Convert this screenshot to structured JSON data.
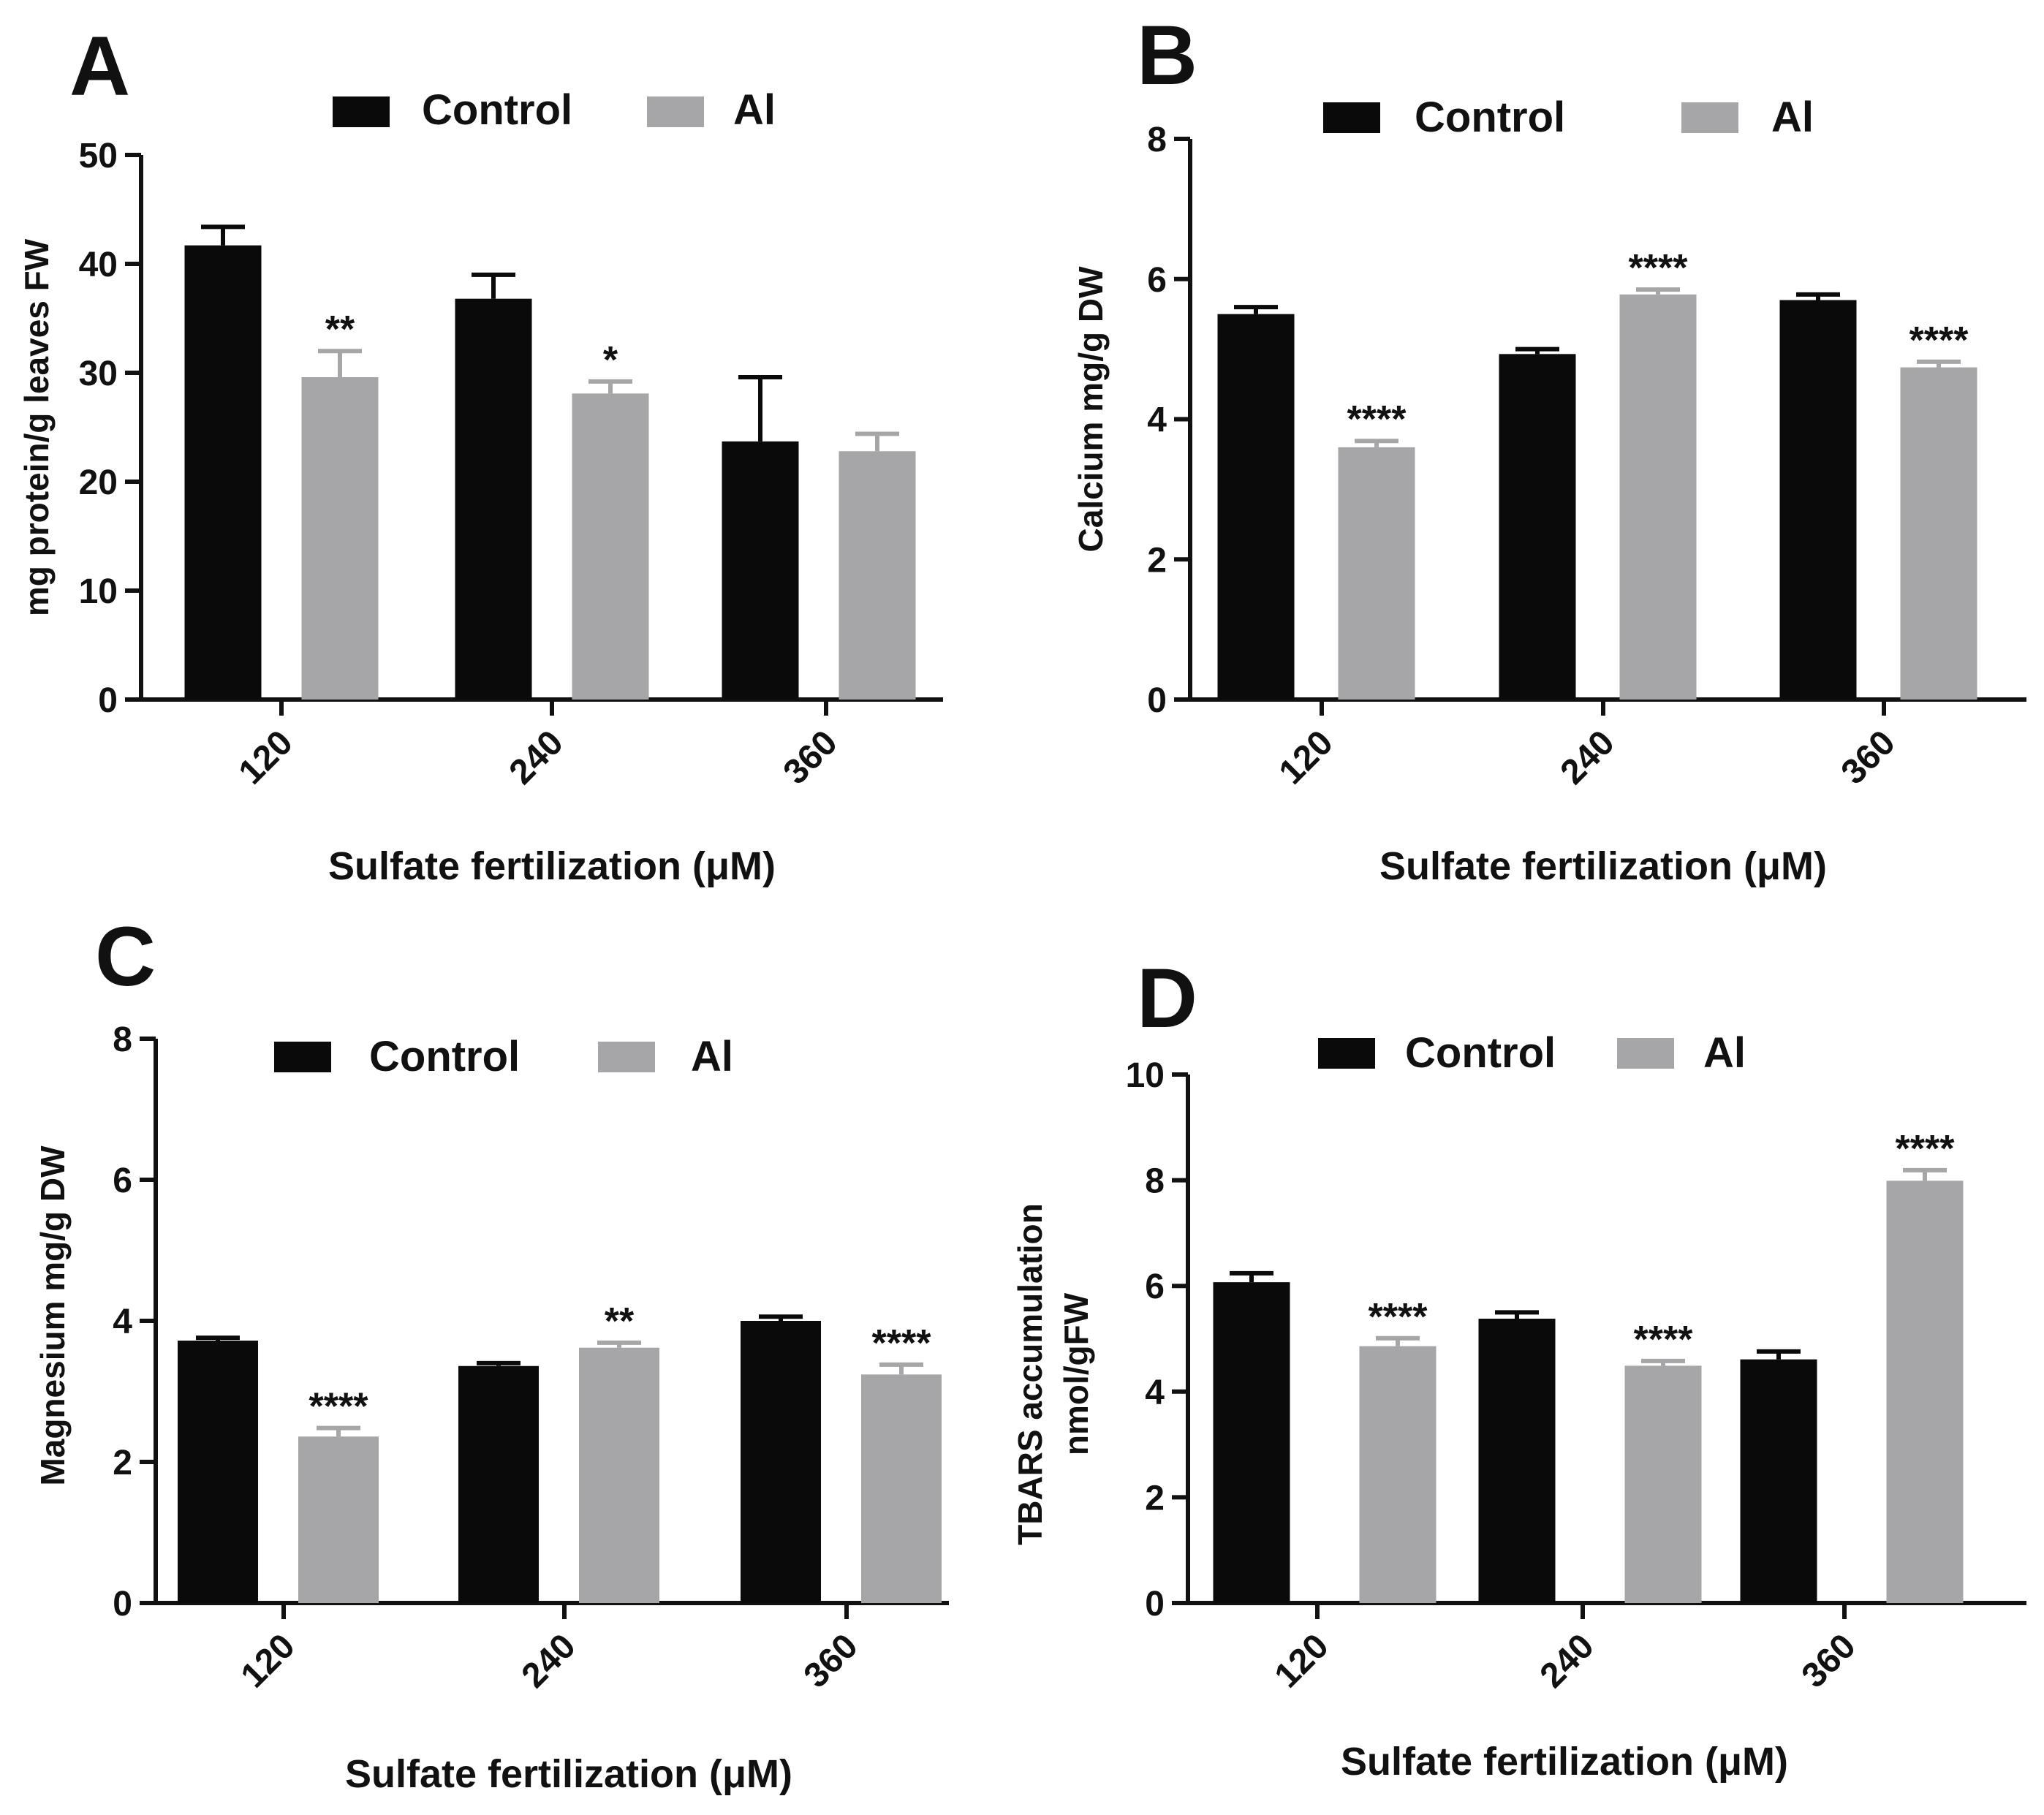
{
  "figure": {
    "background": "#ffffff"
  },
  "colors": {
    "control": "#0a0a0a",
    "al": "#a6a6a8",
    "axis": "#111111"
  },
  "chart_data": [
    {
      "type": "bar",
      "panel": "A",
      "legend": [
        "Control",
        "Al"
      ],
      "categories": [
        "120",
        "240",
        "360"
      ],
      "xlabel": "Sulfate fertilization  (μM)",
      "ylabel": "mg protein/g leaves FW",
      "ylim": [
        0,
        50
      ],
      "yticks": [
        "0",
        "10",
        "20",
        "30",
        "40",
        "50"
      ],
      "series": [
        {
          "name": "Control",
          "values": [
            41.7,
            36.8,
            23.7
          ],
          "errors": [
            1.7,
            2.2,
            5.9
          ],
          "sig": [
            "",
            "",
            ""
          ]
        },
        {
          "name": "Al",
          "values": [
            29.6,
            28.1,
            22.8
          ],
          "errors": [
            2.4,
            1.1,
            1.6
          ],
          "sig": [
            "**",
            "*",
            ""
          ]
        }
      ]
    },
    {
      "type": "bar",
      "panel": "B",
      "legend": [
        "Control",
        "Al"
      ],
      "categories": [
        "120",
        "240",
        "360"
      ],
      "xlabel": "Sulfate fertilization  (μM)",
      "ylabel": "Calcium mg/g DW",
      "ylim": [
        0,
        8
      ],
      "yticks": [
        "0",
        "2",
        "4",
        "6",
        "8"
      ],
      "series": [
        {
          "name": "Control",
          "values": [
            5.5,
            4.93,
            5.7
          ],
          "errors": [
            0.1,
            0.07,
            0.08
          ],
          "sig": [
            "",
            "",
            ""
          ]
        },
        {
          "name": "Al",
          "values": [
            3.6,
            5.78,
            4.74
          ],
          "errors": [
            0.09,
            0.07,
            0.08
          ],
          "sig": [
            "****",
            "****",
            "****"
          ]
        }
      ]
    },
    {
      "type": "bar",
      "panel": "C",
      "legend": [
        "Control",
        "Al"
      ],
      "categories": [
        "120",
        "240",
        "360"
      ],
      "xlabel": "Sulfate fertilization  (μM)",
      "ylabel": "Magnesium mg/g DW",
      "ylim": [
        0,
        8
      ],
      "yticks": [
        "0",
        "2",
        "4",
        "6",
        "8"
      ],
      "series": [
        {
          "name": "Control",
          "values": [
            3.72,
            3.36,
            4.0
          ],
          "errors": [
            0.04,
            0.04,
            0.06
          ],
          "sig": [
            "",
            "",
            ""
          ]
        },
        {
          "name": "Al",
          "values": [
            2.36,
            3.62,
            3.24
          ],
          "errors": [
            0.12,
            0.07,
            0.14
          ],
          "sig": [
            "****",
            "**",
            "****"
          ]
        }
      ]
    },
    {
      "type": "bar",
      "panel": "D",
      "legend": [
        "Control",
        "Al"
      ],
      "categories": [
        "120",
        "240",
        "360"
      ],
      "xlabel": "Sulfate fertilization  (μM)",
      "ylabel": [
        "TBARS accumulation",
        "nmol/gFW"
      ],
      "ylim": [
        0,
        10
      ],
      "yticks": [
        "0",
        "2",
        "4",
        "6",
        "8",
        "10"
      ],
      "series": [
        {
          "name": "Control",
          "values": [
            6.07,
            5.38,
            4.61
          ],
          "errors": [
            0.17,
            0.12,
            0.15
          ],
          "sig": [
            "",
            "",
            ""
          ]
        },
        {
          "name": "Al",
          "values": [
            4.86,
            4.49,
            7.99
          ],
          "errors": [
            0.15,
            0.09,
            0.2
          ],
          "sig": [
            "****",
            "****",
            "****"
          ]
        }
      ]
    }
  ]
}
